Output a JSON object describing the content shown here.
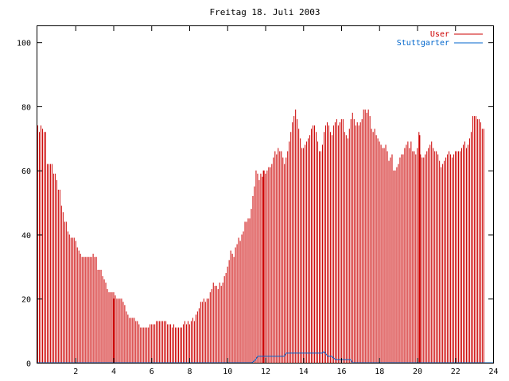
{
  "chart_data": {
    "type": "bar",
    "title": "Freitag 18. Juli 2003",
    "xlabel": "",
    "ylabel": "",
    "xlim": [
      0,
      24
    ],
    "ylim": [
      0,
      105
    ],
    "x_ticks": [
      2,
      4,
      6,
      8,
      10,
      12,
      14,
      16,
      18,
      20,
      22,
      24
    ],
    "x_tick_labels": [
      "2",
      "4",
      "6",
      "8",
      "10",
      "12",
      "14",
      "16",
      "18",
      "20",
      "22",
      "24"
    ],
    "y_ticks": [
      0,
      20,
      40,
      60,
      80,
      100
    ],
    "y_tick_labels": [
      "0",
      "20",
      "40",
      "60",
      "80",
      "100"
    ],
    "legend_position": "top-right",
    "grid": false,
    "bar_interval_hours": 0.0833,
    "series": [
      {
        "name": "User",
        "color": "#cc0000",
        "style": "impulses",
        "values": [
          74,
          72,
          74,
          73,
          72,
          72,
          62,
          62,
          62,
          62,
          59,
          59,
          57,
          54,
          54,
          49,
          47,
          44,
          44,
          41,
          40,
          39,
          39,
          39,
          38,
          36,
          35,
          34,
          33,
          33,
          33,
          33,
          33,
          33,
          33,
          34,
          33,
          33,
          29,
          29,
          29,
          27,
          26,
          25,
          23,
          22,
          22,
          22,
          22,
          21,
          20,
          20,
          20,
          20,
          19,
          18,
          16,
          15,
          14,
          14,
          14,
          14,
          13,
          13,
          12,
          11,
          11,
          11,
          11,
          11,
          11,
          12,
          12,
          12,
          12,
          13,
          13,
          13,
          13,
          13,
          13,
          13,
          12,
          12,
          12,
          11,
          12,
          11,
          11,
          11,
          11,
          11,
          12,
          13,
          12,
          13,
          12,
          13,
          14,
          13,
          15,
          16,
          17,
          19,
          19,
          20,
          19,
          20,
          20,
          22,
          23,
          25,
          24,
          24,
          23,
          25,
          24,
          25,
          27,
          28,
          30,
          32,
          35,
          34,
          33,
          36,
          37,
          39,
          38,
          40,
          41,
          44,
          44,
          45,
          45,
          48,
          52,
          55,
          60,
          59,
          57,
          59,
          58,
          58,
          59,
          60,
          61,
          61,
          62,
          64,
          66,
          65,
          67,
          66,
          66,
          64,
          62,
          64,
          66,
          69,
          72,
          75,
          77,
          79,
          76,
          73,
          70,
          67,
          67,
          68,
          69,
          70,
          71,
          73,
          74,
          74,
          72,
          69,
          66,
          66,
          68,
          72,
          74,
          75,
          74,
          72,
          71,
          74,
          75,
          76,
          74,
          75,
          76,
          76,
          72,
          71,
          70,
          73,
          76,
          78,
          76,
          74,
          75,
          74,
          75,
          76,
          79,
          79,
          78,
          79,
          77,
          73,
          72,
          73,
          71,
          70,
          69,
          68,
          67,
          67,
          68,
          66,
          63,
          64,
          65,
          60,
          60,
          61,
          62,
          64,
          65,
          65,
          67,
          68,
          69,
          67,
          69,
          66,
          66,
          65,
          67,
          72,
          65,
          64,
          64,
          65,
          66,
          67,
          68,
          69,
          67,
          66,
          66,
          65,
          63,
          61,
          62,
          63,
          64,
          65,
          66,
          65,
          64,
          65,
          66,
          66,
          66,
          66,
          67,
          68,
          69,
          67,
          68,
          70,
          72,
          77,
          77,
          77,
          76,
          76,
          75,
          73,
          73
        ],
        "spikes": [
          {
            "x": 4.0,
            "value": 20
          },
          {
            "x": 11.9,
            "value": 60
          },
          {
            "x": 20.1,
            "value": 71
          }
        ]
      },
      {
        "name": "Stuttgarter",
        "color": "#0066cc",
        "style": "line",
        "points": [
          [
            0,
            0
          ],
          [
            11.3,
            0
          ],
          [
            11.5,
            1
          ],
          [
            11.6,
            2
          ],
          [
            13.0,
            2
          ],
          [
            13.1,
            3
          ],
          [
            15.0,
            3
          ],
          [
            15.1,
            3.5
          ],
          [
            15.3,
            2
          ],
          [
            15.5,
            2
          ],
          [
            15.7,
            1
          ],
          [
            16.5,
            1
          ],
          [
            16.6,
            0
          ],
          [
            24,
            0
          ]
        ]
      }
    ]
  }
}
